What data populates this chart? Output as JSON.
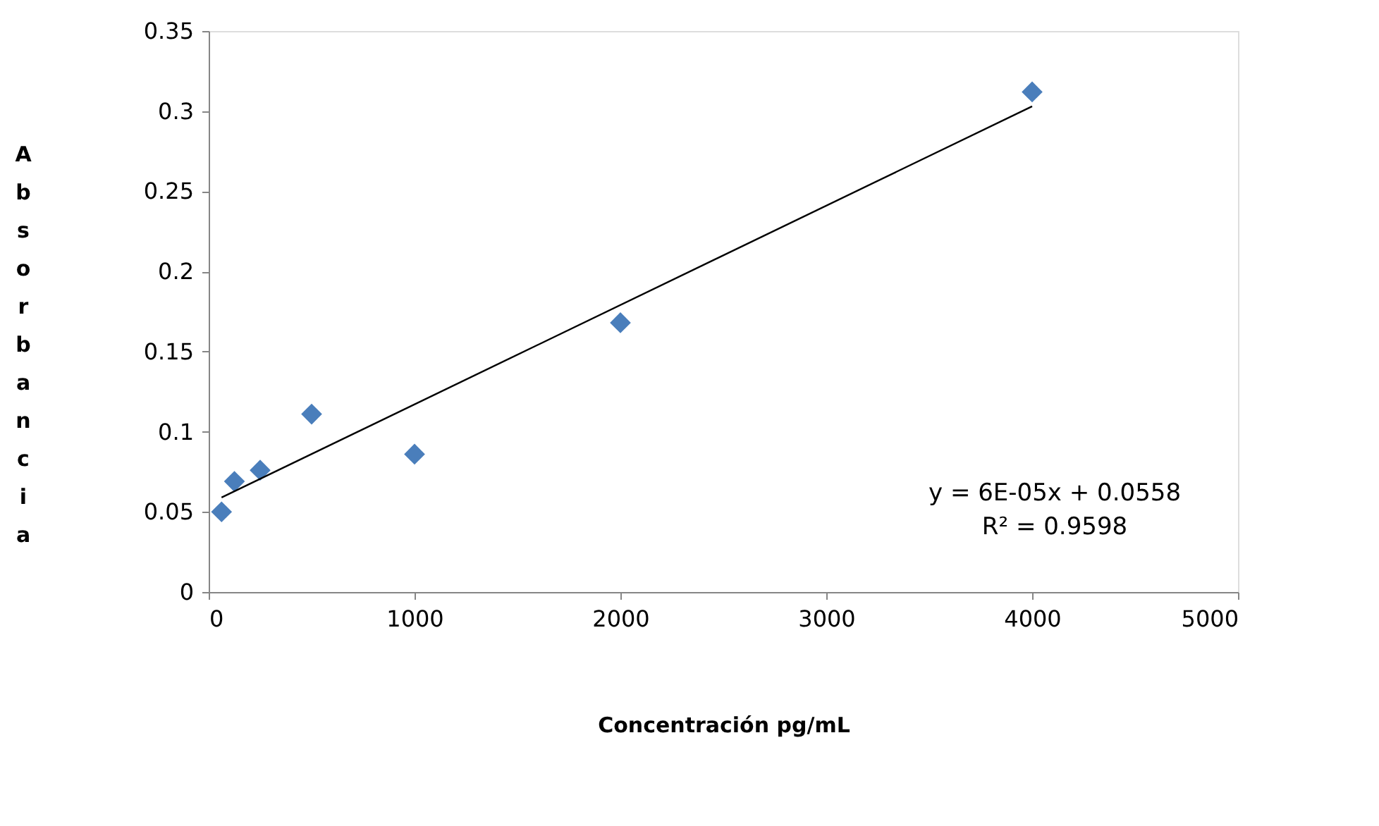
{
  "chart_data": {
    "type": "scatter",
    "xlabel": "Concentración pg/mL",
    "ylabel": "Absorbancia",
    "xlim": [
      0,
      5000
    ],
    "xticks": [
      0,
      1000,
      2000,
      3000,
      4000,
      5000
    ],
    "ylim": [
      0,
      0.35
    ],
    "yticks": [
      0,
      0.05,
      0.1,
      0.15,
      0.2,
      0.25,
      0.3,
      0.35
    ],
    "grid": false,
    "legend": false,
    "marker": "diamond",
    "series": [
      {
        "type": "scatter",
        "color": "#4a7ebb",
        "x": [
          62.5,
          125,
          250,
          500,
          1000,
          2000,
          4000
        ],
        "values": [
          0.05,
          0.069,
          0.076,
          0.111,
          0.086,
          0.168,
          0.312
        ]
      },
      {
        "type": "line",
        "color": "#000000",
        "line_style": "solid",
        "marker": "none",
        "x": [
          62.5,
          4000
        ],
        "values": [
          0.059,
          0.303
        ]
      }
    ],
    "annotations": [
      "y = 6E-05x + 0.0558",
      "R² = 0.9598"
    ]
  }
}
